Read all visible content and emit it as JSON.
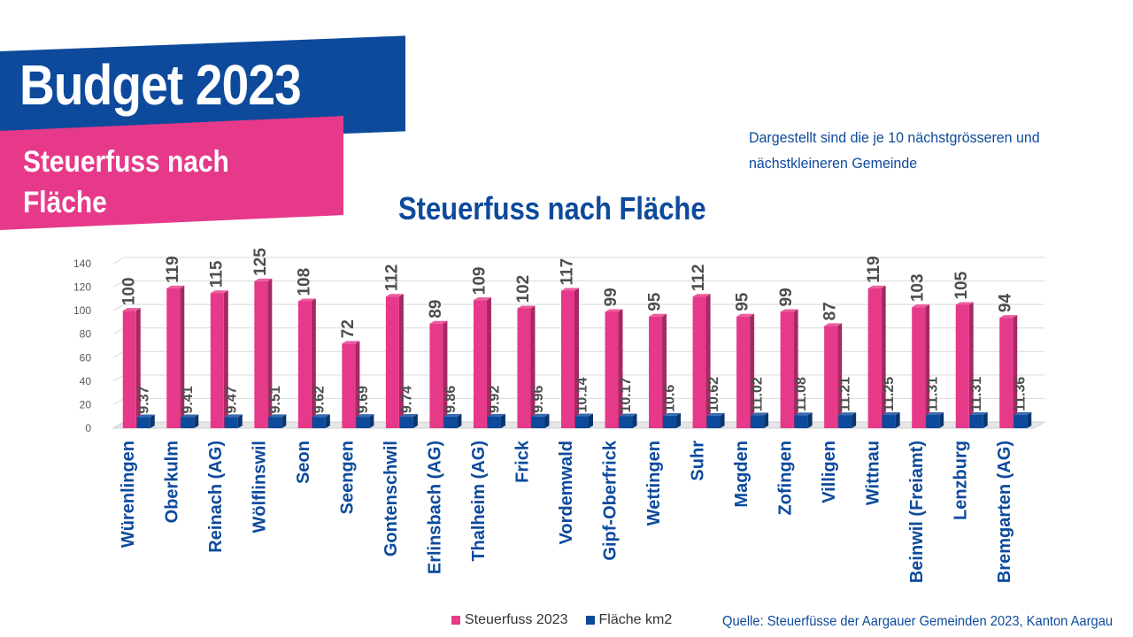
{
  "header": {
    "title": "Budget 2023",
    "subtitle": "Steuerfuss nach Fläche"
  },
  "note": "Dargestellt sind die je 10 nächstgrösseren und nächstkleineren Gemeinde",
  "source": "Quelle: Steuerfüsse der Aargauer Gemeinden 2023, Kanton Aargau",
  "colors": {
    "brand_blue": "#0d4a9c",
    "brand_pink": "#e6398a",
    "series_steuerfuss": "#e6398a",
    "series_flaeche": "#0d4a9c"
  },
  "chart_data": {
    "type": "bar",
    "title": "Steuerfuss nach Fläche",
    "xlabel": "",
    "ylabel": "",
    "ylim": [
      0,
      140
    ],
    "yticks": [
      0,
      20,
      40,
      60,
      80,
      100,
      120,
      140
    ],
    "grid": true,
    "legend_position": "bottom",
    "categories": [
      "Würenlingen",
      "Oberkulm",
      "Reinach (AG)",
      "Wölflinswil",
      "Seon",
      "Seengen",
      "Gontenschwil",
      "Erlinsbach (AG)",
      "Thalheim (AG)",
      "Frick",
      "Vordemwald",
      "Gipf-Oberfrick",
      "Wettingen",
      "Suhr",
      "Magden",
      "Zofingen",
      "Villigen",
      "Wittnau",
      "Beinwil (Freiamt)",
      "Lenzburg",
      "Bremgarten (AG)"
    ],
    "series": [
      {
        "name": "Steuerfuss 2023",
        "values": [
          100,
          119,
          115,
          125,
          108,
          72,
          112,
          89,
          109,
          102,
          117,
          99,
          95,
          112,
          95,
          99,
          87,
          119,
          103,
          105,
          94
        ],
        "labels": [
          "100",
          "119",
          "115",
          "125",
          "108",
          "72",
          "112",
          "89",
          "109",
          "102",
          "117",
          "99",
          "95",
          "112",
          "95",
          "99",
          "87",
          "119",
          "103",
          "105",
          "94"
        ]
      },
      {
        "name": "Fläche km2",
        "values": [
          9.37,
          9.41,
          9.47,
          9.51,
          9.62,
          9.69,
          9.74,
          9.86,
          9.92,
          9.96,
          10.14,
          10.17,
          10.6,
          10.62,
          11.02,
          11.08,
          11.21,
          11.25,
          11.31,
          11.31,
          11.36
        ],
        "labels": [
          "9.37",
          "9.41",
          "9.47",
          "9.51",
          "9.62",
          "9.69",
          "9.74",
          "9.86",
          "9.92",
          "9.96",
          "10.14",
          "10.17",
          "10.6",
          "10.62",
          "11.02",
          "11.08",
          "11.21",
          "11.25",
          "11.31",
          "11.31",
          "11.36"
        ]
      }
    ]
  }
}
